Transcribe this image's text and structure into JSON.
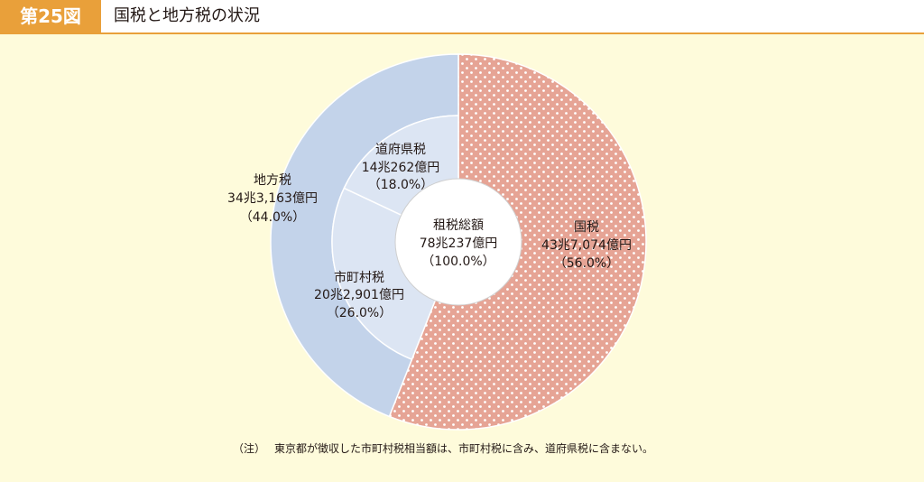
{
  "header": {
    "figure_no": "第25図"
  },
  "chart_data": {
    "type": "pie",
    "title": "国税と地方税の状況",
    "total": {
      "label": "租税総額",
      "amount": "78兆237億円",
      "percent": "（100.0%）"
    },
    "outer": [
      {
        "name": "国税",
        "amount": "43兆7,074億円",
        "percent": "（56.0%）",
        "value": 56.0,
        "color": "#e6a495",
        "dot_color": "#ffffff"
      },
      {
        "name": "地方税",
        "amount": "34兆3,163億円",
        "percent": "（44.0%）",
        "value": 44.0,
        "color": "#c3d3ea"
      }
    ],
    "inner": [
      {
        "name": "市町村税",
        "amount": "20兆2,901億円",
        "percent": "（26.0%）",
        "value": 26.0,
        "color": "#dce5f3"
      },
      {
        "name": "道府県税",
        "amount": "14兆262億円",
        "percent": "（18.0%）",
        "value": 18.0,
        "color": "#dce5f3"
      }
    ]
  },
  "note": {
    "mark": "（注）",
    "text": "東京都が徴収した市町村税相当額は、市町村税に含み、道府県税に含まない。"
  },
  "colors": {
    "accent": "#e9a03a",
    "panel_background": "#fefbdb"
  }
}
